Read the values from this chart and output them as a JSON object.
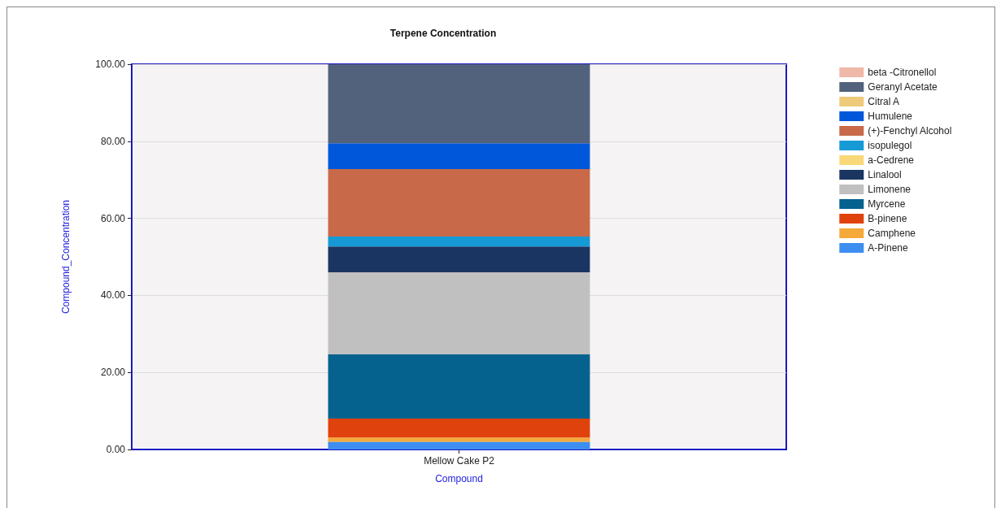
{
  "chart_data": {
    "type": "bar",
    "title": "Terpene Concentration",
    "xlabel": "Compound",
    "ylabel": "Compound_Concentration",
    "categories": [
      "Mellow Cake P2"
    ],
    "stacked": true,
    "series": [
      {
        "name": "A-Pinene",
        "color": "#3d8ef0",
        "values": [
          2.0
        ]
      },
      {
        "name": "Camphene",
        "color": "#f5a93a",
        "values": [
          1.1
        ]
      },
      {
        "name": "B-pinene",
        "color": "#e0420e",
        "values": [
          4.9
        ]
      },
      {
        "name": "Myrcene",
        "color": "#05628e",
        "values": [
          16.7
        ]
      },
      {
        "name": "Limonene",
        "color": "#c0c0c0",
        "values": [
          21.3
        ]
      },
      {
        "name": "Linalool",
        "color": "#1a3561",
        "values": [
          6.7
        ]
      },
      {
        "name": "a-Cedrene",
        "color": "#f8d878",
        "values": [
          0
        ]
      },
      {
        "name": "isopulegol",
        "color": "#169ad6",
        "values": [
          2.6
        ]
      },
      {
        "name": "(+)-Fenchyl Alcohol",
        "color": "#c8694a",
        "values": [
          17.5
        ]
      },
      {
        "name": "Humulene",
        "color": "#0057d9",
        "values": [
          6.7
        ]
      },
      {
        "name": "Citral A",
        "color": "#eecb7a",
        "values": [
          0
        ]
      },
      {
        "name": "Geranyl Acetate",
        "color": "#52627d",
        "values": [
          20.5
        ]
      },
      {
        "name": "beta -Citronellol",
        "color": "#efb8a8",
        "values": [
          0
        ]
      }
    ],
    "ylim": [
      0,
      100
    ],
    "yticks": [
      {
        "value": 0,
        "label": "0.00"
      },
      {
        "value": 20,
        "label": "20.00"
      },
      {
        "value": 40,
        "label": "40.00"
      },
      {
        "value": 60,
        "label": "60.00"
      },
      {
        "value": 80,
        "label": "80.00"
      },
      {
        "value": 100,
        "label": "100.00"
      }
    ],
    "grid": "y",
    "legend": "top right"
  }
}
